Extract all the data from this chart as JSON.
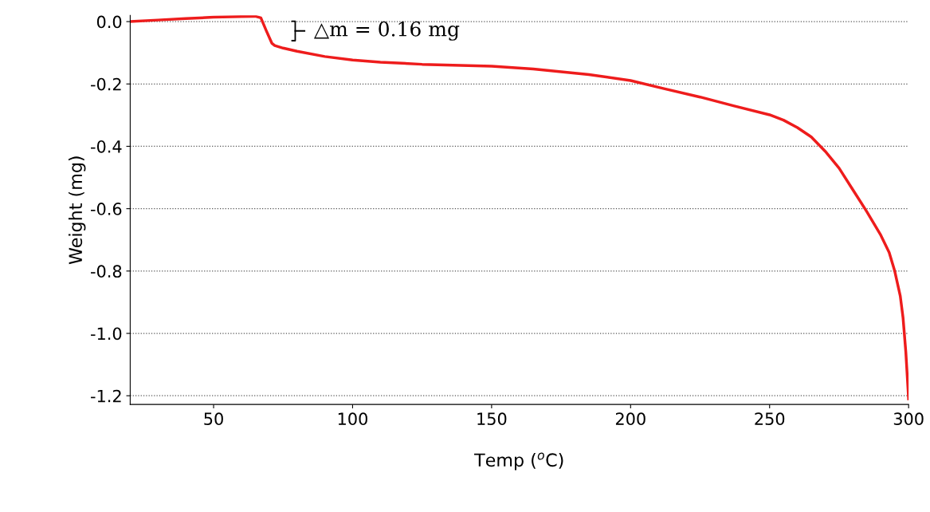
{
  "chart_data": {
    "type": "line",
    "xlabel": "Temp ($^{o}$C)",
    "ylabel": "Weight (mg)",
    "x": [
      20,
      30,
      40,
      50,
      60,
      65,
      67,
      69,
      71,
      72,
      75,
      80,
      90,
      100,
      110,
      125,
      150,
      165,
      175,
      185,
      200,
      212,
      225,
      237,
      250,
      255,
      260,
      265,
      270,
      275,
      280,
      285,
      290,
      293,
      295,
      297,
      298,
      299,
      300
    ],
    "series": [
      {
        "color": "#ee1c1c",
        "values": [
          0.0,
          0.005,
          0.01,
          0.014,
          0.016,
          0.017,
          0.012,
          -0.03,
          -0.07,
          -0.077,
          -0.085,
          -0.095,
          -0.112,
          -0.123,
          -0.13,
          -0.137,
          -0.143,
          -0.152,
          -0.161,
          -0.17,
          -0.189,
          -0.215,
          -0.242,
          -0.27,
          -0.299,
          -0.316,
          -0.34,
          -0.37,
          -0.416,
          -0.47,
          -0.54,
          -0.61,
          -0.685,
          -0.74,
          -0.8,
          -0.88,
          -0.95,
          -1.06,
          -1.21
        ]
      }
    ],
    "annotations": [
      "△m = 0.16 mg"
    ],
    "xlim": [
      20,
      300
    ],
    "ylim": [
      -1.228,
      0.02
    ],
    "xticks": [
      50,
      100,
      150,
      200,
      250,
      300
    ],
    "yticks": [
      {
        "value": 0.0,
        "label": "0.0"
      },
      {
        "value": -0.2,
        "label": "-0.2"
      },
      {
        "value": -0.4,
        "label": "-0.4"
      },
      {
        "value": -0.6,
        "label": "-0.6"
      },
      {
        "value": -0.8,
        "label": "-0.8"
      },
      {
        "value": -1.0,
        "label": "-1.0"
      },
      {
        "value": -1.2,
        "label": "-1.2"
      }
    ],
    "grid": "y",
    "line_style": "solid",
    "marker": "none"
  }
}
